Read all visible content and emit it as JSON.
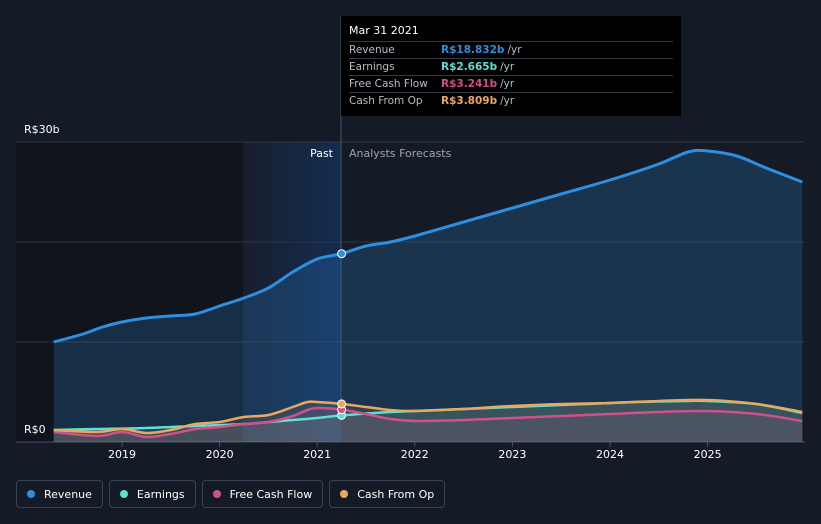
{
  "chart_data": {
    "type": "line",
    "currency_axis": {
      "top_label": "R$30b",
      "bottom_label": "R$0",
      "ylim": [
        0,
        30
      ]
    },
    "x_ticks": [
      "2019",
      "2020",
      "2021",
      "2022",
      "2023",
      "2024",
      "2025"
    ],
    "regions": {
      "past": "Past",
      "forecast": "Analysts Forecasts"
    },
    "highlight_date": "Mar 31 2021",
    "series": [
      {
        "name": "Revenue",
        "color": "#2d8fe0",
        "points": [
          [
            2018.3,
            10.0
          ],
          [
            2018.6,
            10.8
          ],
          [
            2018.8,
            11.5
          ],
          [
            2019.0,
            12.0
          ],
          [
            2019.25,
            12.4
          ],
          [
            2019.5,
            12.6
          ],
          [
            2019.75,
            12.8
          ],
          [
            2020.0,
            13.6
          ],
          [
            2020.25,
            14.4
          ],
          [
            2020.5,
            15.4
          ],
          [
            2020.75,
            17.0
          ],
          [
            2021.0,
            18.3
          ],
          [
            2021.25,
            18.83
          ],
          [
            2021.5,
            19.6
          ],
          [
            2021.75,
            20.0
          ],
          [
            2022.0,
            20.6
          ],
          [
            2022.5,
            22.0
          ],
          [
            2023.0,
            23.4
          ],
          [
            2023.5,
            24.8
          ],
          [
            2024.0,
            26.2
          ],
          [
            2024.5,
            27.8
          ],
          [
            2024.8,
            29.0
          ],
          [
            2025.0,
            29.1
          ],
          [
            2025.3,
            28.6
          ],
          [
            2025.6,
            27.4
          ],
          [
            2025.97,
            26.0
          ]
        ]
      },
      {
        "name": "Earnings",
        "color": "#5ee0d0",
        "points": [
          [
            2018.3,
            1.2
          ],
          [
            2018.75,
            1.3
          ],
          [
            2019.25,
            1.4
          ],
          [
            2019.75,
            1.6
          ],
          [
            2020.25,
            1.8
          ],
          [
            2020.75,
            2.2
          ],
          [
            2021.0,
            2.4
          ],
          [
            2021.25,
            2.665
          ],
          [
            2021.75,
            3.0
          ],
          [
            2022.25,
            3.2
          ],
          [
            2022.75,
            3.4
          ],
          [
            2023.25,
            3.6
          ],
          [
            2023.75,
            3.8
          ],
          [
            2024.25,
            4.0
          ],
          [
            2024.75,
            4.1
          ],
          [
            2025.0,
            4.1
          ],
          [
            2025.5,
            3.8
          ],
          [
            2025.97,
            2.9
          ]
        ]
      },
      {
        "name": "Free Cash Flow",
        "color": "#d0508a",
        "points": [
          [
            2018.3,
            1.0
          ],
          [
            2018.75,
            0.6
          ],
          [
            2019.0,
            1.0
          ],
          [
            2019.25,
            0.5
          ],
          [
            2019.5,
            0.8
          ],
          [
            2019.75,
            1.3
          ],
          [
            2020.0,
            1.5
          ],
          [
            2020.25,
            1.8
          ],
          [
            2020.5,
            2.0
          ],
          [
            2020.75,
            2.6
          ],
          [
            2020.9,
            3.2
          ],
          [
            2021.0,
            3.4
          ],
          [
            2021.25,
            3.241
          ],
          [
            2021.5,
            2.8
          ],
          [
            2021.75,
            2.3
          ],
          [
            2022.0,
            2.1
          ],
          [
            2022.5,
            2.2
          ],
          [
            2023.0,
            2.4
          ],
          [
            2023.5,
            2.6
          ],
          [
            2024.0,
            2.8
          ],
          [
            2024.5,
            3.0
          ],
          [
            2025.0,
            3.1
          ],
          [
            2025.5,
            2.8
          ],
          [
            2025.97,
            2.1
          ]
        ]
      },
      {
        "name": "Cash From Op",
        "color": "#e9a860",
        "points": [
          [
            2018.3,
            1.2
          ],
          [
            2018.75,
            1.0
          ],
          [
            2019.0,
            1.3
          ],
          [
            2019.25,
            0.9
          ],
          [
            2019.5,
            1.2
          ],
          [
            2019.75,
            1.8
          ],
          [
            2020.0,
            2.0
          ],
          [
            2020.25,
            2.5
          ],
          [
            2020.5,
            2.7
          ],
          [
            2020.75,
            3.5
          ],
          [
            2020.9,
            4.0
          ],
          [
            2021.0,
            4.0
          ],
          [
            2021.25,
            3.809
          ],
          [
            2021.5,
            3.5
          ],
          [
            2021.75,
            3.2
          ],
          [
            2022.0,
            3.1
          ],
          [
            2022.5,
            3.3
          ],
          [
            2023.0,
            3.6
          ],
          [
            2023.5,
            3.8
          ],
          [
            2024.0,
            3.9
          ],
          [
            2024.5,
            4.1
          ],
          [
            2025.0,
            4.2
          ],
          [
            2025.5,
            3.8
          ],
          [
            2025.97,
            3.0
          ]
        ]
      }
    ]
  },
  "tooltip": {
    "date": "Mar 31 2021",
    "rows": [
      {
        "name": "Revenue",
        "value": "R$18.832b",
        "unit": "/yr",
        "color": "#2d8fe0"
      },
      {
        "name": "Earnings",
        "value": "R$2.665b",
        "unit": "/yr",
        "color": "#5ee0d0"
      },
      {
        "name": "Free Cash Flow",
        "value": "R$3.241b",
        "unit": "/yr",
        "color": "#d0508a"
      },
      {
        "name": "Cash From Op",
        "value": "R$3.809b",
        "unit": "/yr",
        "color": "#e9a860"
      }
    ]
  },
  "legend": [
    {
      "label": "Revenue",
      "color": "#2d8fe0"
    },
    {
      "label": "Earnings",
      "color": "#5ee0d0"
    },
    {
      "label": "Free Cash Flow",
      "color": "#d0508a"
    },
    {
      "label": "Cash From Op",
      "color": "#e9a860"
    }
  ]
}
